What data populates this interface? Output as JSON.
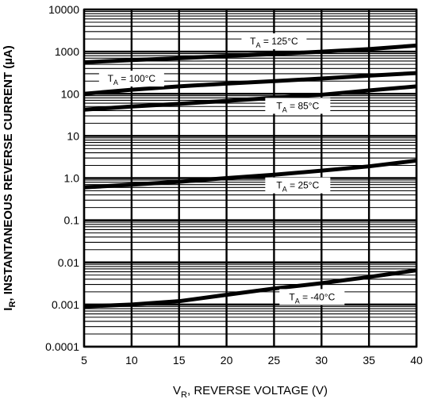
{
  "chart_data": {
    "type": "line",
    "x_axis": {
      "label_main": "V",
      "label_sub": "R",
      "label_rest": ", REVERSE VOLTAGE (V)",
      "range": [
        5,
        40
      ],
      "ticks": [
        "5",
        "10",
        "15",
        "20",
        "25",
        "30",
        "35",
        "40"
      ]
    },
    "y_axis": {
      "label_main": "I",
      "label_sub": "R",
      "label_rest": ", INSTANTANEOUS REVERSE CURRENT (µA)",
      "scale": "log",
      "range": [
        0.0001,
        10000
      ],
      "ticks": [
        "10000",
        "1000",
        "100",
        "10",
        "1.0",
        "0.1",
        "0.01",
        "0.001",
        "0.0001"
      ]
    },
    "grid": true,
    "series": [
      {
        "name": "T_A = 125°C",
        "label": {
          "t": "T",
          "sub": "A",
          "rest": " = 125°C"
        },
        "x": [
          5,
          10,
          15,
          20,
          25,
          30,
          35,
          40
        ],
        "y": [
          560,
          630,
          700,
          790,
          880,
          1000,
          1150,
          1400
        ]
      },
      {
        "name": "T_A = 100°C",
        "label": {
          "t": "T",
          "sub": "A",
          "rest": " = 100°C"
        },
        "x": [
          5,
          10,
          15,
          20,
          25,
          30,
          35,
          40
        ],
        "y": [
          100,
          125,
          150,
          175,
          200,
          230,
          270,
          310
        ]
      },
      {
        "name": "T_A = 85°C",
        "label": {
          "t": "T",
          "sub": "A",
          "rest": " = 85°C"
        },
        "x": [
          5,
          10,
          15,
          20,
          25,
          30,
          35,
          40
        ],
        "y": [
          42,
          50,
          58,
          68,
          80,
          95,
          120,
          150
        ]
      },
      {
        "name": "T_A = 25°C",
        "label": {
          "t": "T",
          "sub": "A",
          "rest": " = 25°C"
        },
        "x": [
          5,
          10,
          15,
          20,
          25,
          30,
          35,
          40
        ],
        "y": [
          0.6,
          0.7,
          0.82,
          1.0,
          1.2,
          1.5,
          1.9,
          2.6
        ]
      },
      {
        "name": "T_A = -40°C",
        "label": {
          "t": "T",
          "sub": "A",
          "rest": " = -40°C"
        },
        "x": [
          5,
          10,
          15,
          20,
          25,
          30,
          35,
          40
        ],
        "y": [
          0.0009,
          0.001,
          0.0012,
          0.0017,
          0.0024,
          0.0032,
          0.0045,
          0.0065
        ]
      }
    ]
  }
}
